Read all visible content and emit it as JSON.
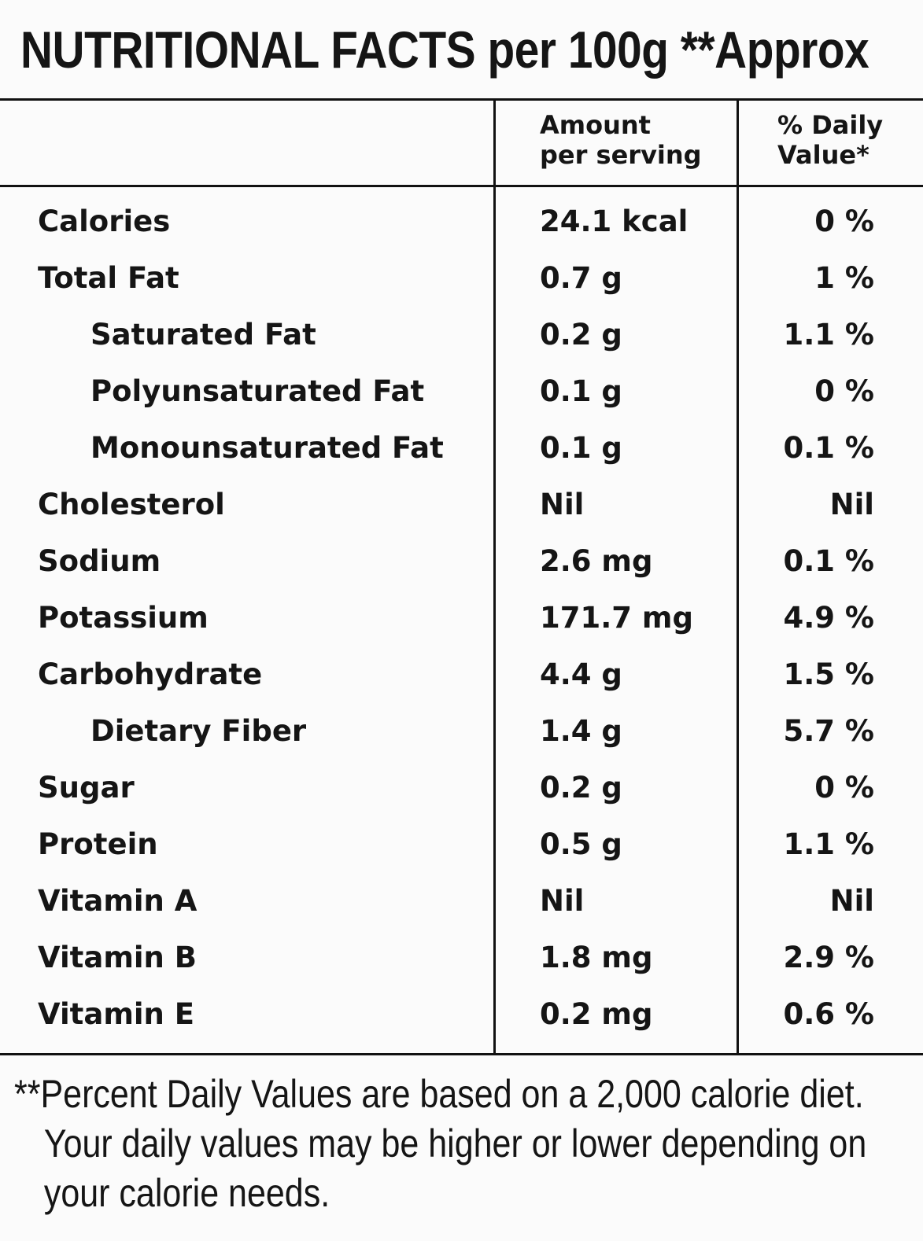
{
  "title": "NUTRITIONAL FACTS per 100g **Approx",
  "header": {
    "amount_line1": "Amount",
    "amount_line2": "per serving",
    "dv_line1": "% Daily",
    "dv_line2": "Value*"
  },
  "rows": [
    {
      "name": "Calories",
      "amount": "24.1 kcal",
      "dv": "0 %"
    },
    {
      "name": "Total Fat",
      "amount": "0.7 g",
      "dv": "1 %"
    },
    {
      "name": "Saturated Fat",
      "amount": "0.2 g",
      "dv": "1.1 %"
    },
    {
      "name": "Polyunsaturated Fat",
      "amount": "0.1 g",
      "dv": "0 %"
    },
    {
      "name": "Monounsaturated Fat",
      "amount": "0.1 g",
      "dv": "0.1 %"
    },
    {
      "name": "Cholesterol",
      "amount": "Nil",
      "dv": "Nil"
    },
    {
      "name": "Sodium",
      "amount": "2.6 mg",
      "dv": "0.1 %"
    },
    {
      "name": "Potassium",
      "amount": "171.7 mg",
      "dv": "4.9 %"
    },
    {
      "name": "Carbohydrate",
      "amount": "4.4 g",
      "dv": "1.5 %"
    },
    {
      "name": "Dietary Fiber",
      "amount": "1.4 g",
      "dv": "5.7 %"
    },
    {
      "name": "Sugar",
      "amount": "0.2 g",
      "dv": "0 %"
    },
    {
      "name": "Protein",
      "amount": "0.5 g",
      "dv": "1.1 %"
    },
    {
      "name": "Vitamin A",
      "amount": "Nil",
      "dv": "Nil"
    },
    {
      "name": "Vitamin B",
      "amount": "1.8 mg",
      "dv": "2.9 %"
    },
    {
      "name": "Vitamin E",
      "amount": "0.2 mg",
      "dv": "0.6 %"
    }
  ],
  "footnote": {
    "line1": "**Percent Daily Values are based on a 2,000 calorie diet.",
    "line2": "Your daily values may be higher or lower depending on",
    "line3": "your calorie needs."
  }
}
